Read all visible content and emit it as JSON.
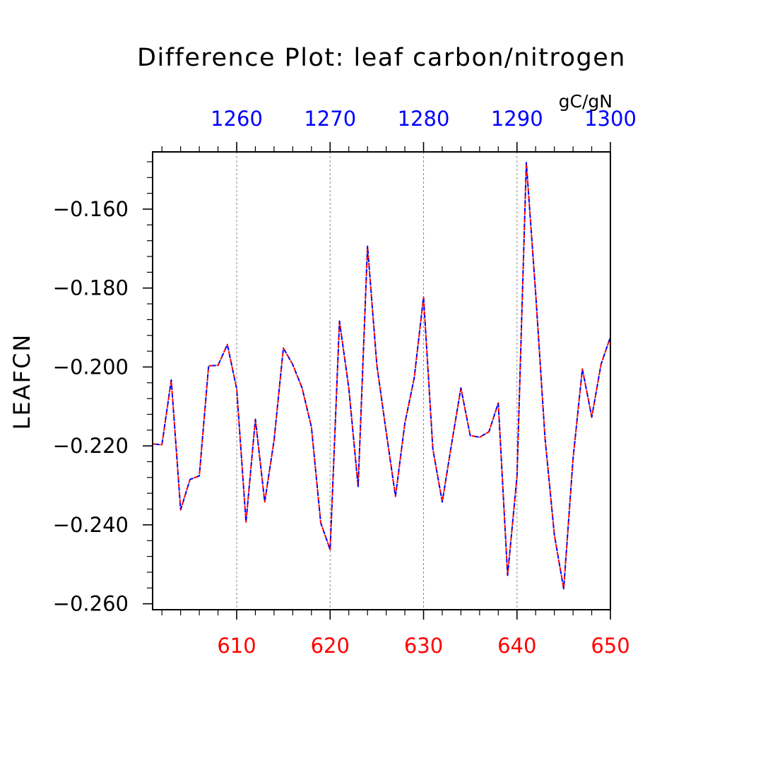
{
  "chart_data": {
    "type": "line",
    "title": "Difference Plot: leaf carbon/nitrogen",
    "units": "gC/gN",
    "ylabel": "LEAFCN",
    "xlim": [
      601,
      650
    ],
    "top_xlim": [
      1251,
      1300
    ],
    "ylim": [
      -0.2615,
      -0.1455
    ],
    "x_ticks": [
      610,
      620,
      630,
      640,
      650
    ],
    "x_tick_labels": [
      "610",
      "620",
      "630",
      "640",
      "650"
    ],
    "top_x_ticks": [
      1260,
      1270,
      1280,
      1290,
      1300
    ],
    "top_x_tick_labels": [
      "1260",
      "1270",
      "1280",
      "1290",
      "1300"
    ],
    "y_ticks": [
      -0.16,
      -0.18,
      -0.2,
      -0.22,
      -0.24,
      -0.26
    ],
    "y_tick_labels": [
      "−0.160",
      "−0.180",
      "−0.200",
      "−0.220",
      "−0.240",
      "−0.260"
    ],
    "vertical_reference_lines": [
      610,
      620,
      630,
      640
    ],
    "colors": {
      "bottom_axis": "#ff0000",
      "top_axis": "#0000ff",
      "series_red": "#ff0000",
      "series_blue": "#0000ff"
    },
    "x": [
      601,
      602,
      603,
      604,
      605,
      606,
      607,
      608,
      609,
      610,
      611,
      612,
      613,
      614,
      615,
      616,
      617,
      618,
      619,
      620,
      621,
      622,
      623,
      624,
      625,
      626,
      627,
      628,
      629,
      630,
      631,
      632,
      633,
      634,
      635,
      636,
      637,
      638,
      639,
      640,
      641,
      642,
      643,
      644,
      645,
      646,
      647,
      648,
      649,
      650
    ],
    "series": [
      {
        "color": "#ff0000",
        "dash": "dashed",
        "values": [
          -0.2195,
          -0.2197,
          -0.2033,
          -0.2362,
          -0.2285,
          -0.2276,
          -0.1997,
          -0.1996,
          -0.1943,
          -0.2055,
          -0.2393,
          -0.2132,
          -0.2342,
          -0.2186,
          -0.1952,
          -0.1994,
          -0.2053,
          -0.2152,
          -0.2395,
          -0.2463,
          -0.1884,
          -0.2053,
          -0.2303,
          -0.1694,
          -0.1995,
          -0.2164,
          -0.2328,
          -0.2142,
          -0.2028,
          -0.1823,
          -0.2208,
          -0.2342,
          -0.2195,
          -0.2053,
          -0.2174,
          -0.2178,
          -0.2164,
          -0.2091,
          -0.2528,
          -0.2277,
          -0.1482,
          -0.1813,
          -0.2179,
          -0.2426,
          -0.2562,
          -0.2233,
          -0.2005,
          -0.2127,
          -0.1993,
          -0.1924
        ]
      },
      {
        "color": "#0000ff",
        "dash": "solid",
        "values": [
          -0.2195,
          -0.2197,
          -0.2033,
          -0.2362,
          -0.2285,
          -0.2276,
          -0.1997,
          -0.1996,
          -0.1943,
          -0.2055,
          -0.2393,
          -0.2132,
          -0.2342,
          -0.2186,
          -0.1952,
          -0.1994,
          -0.2053,
          -0.2152,
          -0.2395,
          -0.2463,
          -0.1884,
          -0.2053,
          -0.2303,
          -0.1694,
          -0.1995,
          -0.2164,
          -0.2328,
          -0.2142,
          -0.2028,
          -0.1823,
          -0.2208,
          -0.2342,
          -0.2195,
          -0.2053,
          -0.2174,
          -0.2178,
          -0.2164,
          -0.2091,
          -0.2528,
          -0.2277,
          -0.1482,
          -0.1813,
          -0.2179,
          -0.2426,
          -0.2562,
          -0.2233,
          -0.2005,
          -0.2127,
          -0.1993,
          -0.1924
        ]
      }
    ]
  }
}
